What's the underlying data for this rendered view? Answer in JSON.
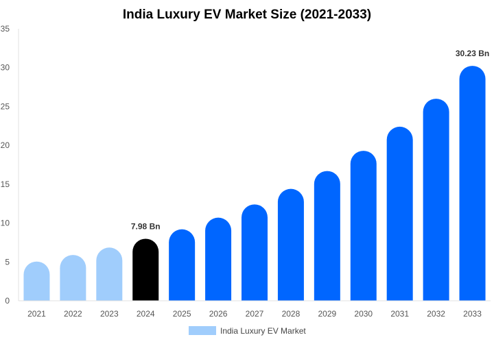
{
  "chart_data": {
    "type": "bar",
    "title": "India Luxury EV Market Size (2021-2033)",
    "xlabel": "",
    "ylabel": "",
    "ylim": [
      0,
      35
    ],
    "yticks": [
      0,
      5,
      10,
      15,
      20,
      25,
      30,
      35
    ],
    "grid": false,
    "legend_placement": "bottom",
    "categories": [
      "2021",
      "2022",
      "2023",
      "2024",
      "2025",
      "2026",
      "2027",
      "2028",
      "2029",
      "2030",
      "2031",
      "2032",
      "2033"
    ],
    "series": [
      {
        "name": "India Luxury EV Market",
        "values": [
          5.05,
          5.9,
          6.85,
          7.98,
          9.2,
          10.7,
          12.4,
          14.4,
          16.7,
          19.3,
          22.4,
          26.0,
          30.23
        ]
      }
    ],
    "bar_colors": [
      "#a0cdfc",
      "#a0cdfc",
      "#a0cdfc",
      "#000000",
      "#0066ff",
      "#0066ff",
      "#0066ff",
      "#0066ff",
      "#0066ff",
      "#0066ff",
      "#0066ff",
      "#0066ff",
      "#0066ff"
    ],
    "legend_color": "#a0cdfc",
    "data_labels": [
      {
        "category": "2024",
        "text": "7.98 Bn"
      },
      {
        "category": "2033",
        "text": "30.23 Bn"
      }
    ]
  }
}
